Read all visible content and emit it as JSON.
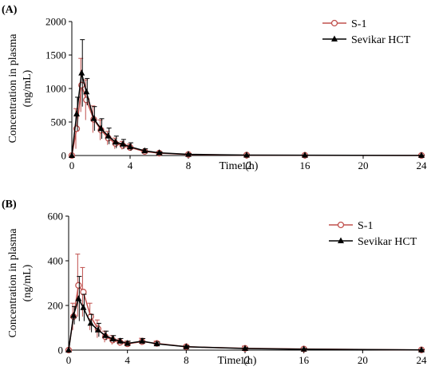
{
  "chart_data": [
    {
      "type": "line",
      "panel_label": "(A)",
      "xlabel": "Time (h)",
      "ylabel_line1": "Concentration in plasma",
      "ylabel_line2": "(ng/mL)",
      "xlim": [
        0,
        24
      ],
      "ylim": [
        0,
        2000
      ],
      "xticks": [
        0,
        4,
        8,
        12,
        16,
        20,
        24
      ],
      "yticks": [
        0,
        500,
        1000,
        1500,
        2000
      ],
      "legend_position": "top-right",
      "grid": false,
      "series": [
        {
          "name": "S-1",
          "color": "#c0504d",
          "marker": "open-circle",
          "x": [
            0,
            0.33,
            0.67,
            1,
            1.5,
            2,
            2.5,
            3,
            3.5,
            4,
            5,
            6,
            8,
            12,
            16,
            24
          ],
          "y": [
            0,
            400,
            1050,
            830,
            540,
            380,
            260,
            180,
            150,
            120,
            60,
            35,
            15,
            5,
            3,
            1
          ],
          "err": [
            0,
            300,
            400,
            300,
            200,
            150,
            100,
            80,
            60,
            50,
            25,
            15,
            8,
            3,
            2,
            1
          ]
        },
        {
          "name": "Sevikar HCT",
          "color": "#000000",
          "marker": "filled-triangle",
          "x": [
            0,
            0.33,
            0.67,
            1,
            1.5,
            2,
            2.5,
            3,
            3.5,
            4,
            5,
            6,
            8,
            12,
            16,
            24
          ],
          "y": [
            0,
            620,
            1230,
            950,
            550,
            400,
            290,
            200,
            170,
            130,
            70,
            40,
            18,
            6,
            4,
            1
          ],
          "err": [
            0,
            250,
            500,
            200,
            180,
            150,
            120,
            90,
            70,
            60,
            30,
            15,
            10,
            4,
            2,
            1
          ]
        }
      ]
    },
    {
      "type": "line",
      "panel_label": "(B)",
      "xlabel": "Time (h)",
      "ylabel_line1": "Concentration in plasma",
      "ylabel_line2": "(ng/mL)",
      "xlim": [
        0,
        24
      ],
      "ylim": [
        0,
        600
      ],
      "xticks": [
        0,
        4,
        8,
        12,
        16,
        20,
        24
      ],
      "yticks": [
        0,
        200,
        400,
        600
      ],
      "legend_position": "top-right",
      "grid": false,
      "series": [
        {
          "name": "S-1",
          "color": "#c0504d",
          "marker": "open-circle",
          "x": [
            0,
            0.33,
            0.67,
            1,
            1.5,
            2,
            2.5,
            3,
            3.5,
            4,
            5,
            6,
            8,
            12,
            16,
            24
          ],
          "y": [
            0,
            150,
            290,
            260,
            150,
            95,
            60,
            45,
            35,
            28,
            38,
            30,
            15,
            8,
            5,
            1
          ],
          "err": [
            0,
            60,
            140,
            110,
            60,
            40,
            25,
            20,
            15,
            12,
            15,
            10,
            6,
            10,
            5,
            1
          ]
        },
        {
          "name": "Sevikar HCT",
          "color": "#000000",
          "marker": "filled-triangle",
          "x": [
            0,
            0.33,
            0.67,
            1,
            1.5,
            2,
            2.5,
            3,
            3.5,
            4,
            5,
            6,
            8,
            12,
            16,
            24
          ],
          "y": [
            0,
            155,
            230,
            190,
            120,
            90,
            65,
            50,
            40,
            30,
            40,
            28,
            15,
            7,
            4,
            1
          ],
          "err": [
            0,
            40,
            100,
            60,
            40,
            30,
            20,
            15,
            12,
            10,
            12,
            8,
            5,
            4,
            3,
            1
          ]
        }
      ]
    }
  ]
}
